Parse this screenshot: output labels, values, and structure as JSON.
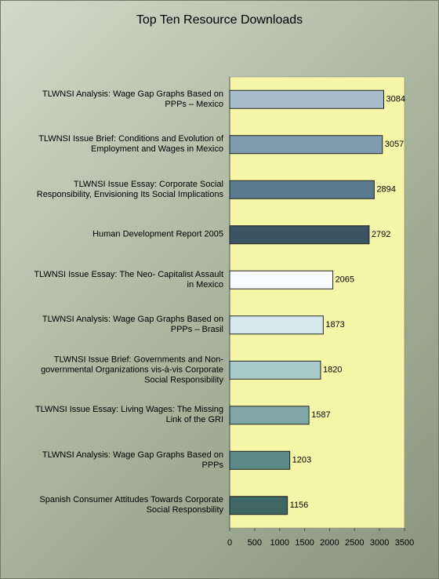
{
  "chart_data": {
    "type": "hbar",
    "title": "Top Ten Resource Downloads",
    "categories": [
      "TLWNSI Analysis:  Wage Gap Graphs Based on PPPs – Mexico",
      "TLWNSI Issue Brief:  Conditions and Evolution of Employment and Wages in Mexico",
      "TLWNSI Issue Essay:  Corporate Social Responsibility, Envisioning Its Social Implications",
      "Human Development Report 2005",
      "TLWNSI Issue Essay:  The Neo- Capitalist Assault in Mexico",
      "TLWNSI Analysis:  Wage Gap Graphs Based on PPPs – Brasil",
      "TLWNSI Issue Brief:  Governments and Non-governmental Organizations vis-à-vis Corporate Social Responsibility",
      "TLWNSI Issue Essay: Living Wages:  The Missing Link of the GRI",
      "TLWNSI Analysis:  Wage Gap Graphs Based on PPPs",
      "Spanish Consumer Attitudes Towards Corporate Social Responsbility"
    ],
    "values": [
      3084,
      3057,
      2894,
      2792,
      2065,
      1873,
      1820,
      1587,
      1203,
      1156
    ],
    "colors": [
      "#a8bdcc",
      "#7f9bae",
      "#5a7a90",
      "#3a5464",
      "#f8fbff",
      "#d5e8ed",
      "#a9caca",
      "#7fa7a7",
      "#5a8987",
      "#3e6664"
    ],
    "xlim": [
      0,
      3500
    ],
    "xticks": [
      0,
      500,
      1000,
      1500,
      2000,
      2500,
      3000,
      3500
    ],
    "plot_background": "#f6f6a8"
  }
}
